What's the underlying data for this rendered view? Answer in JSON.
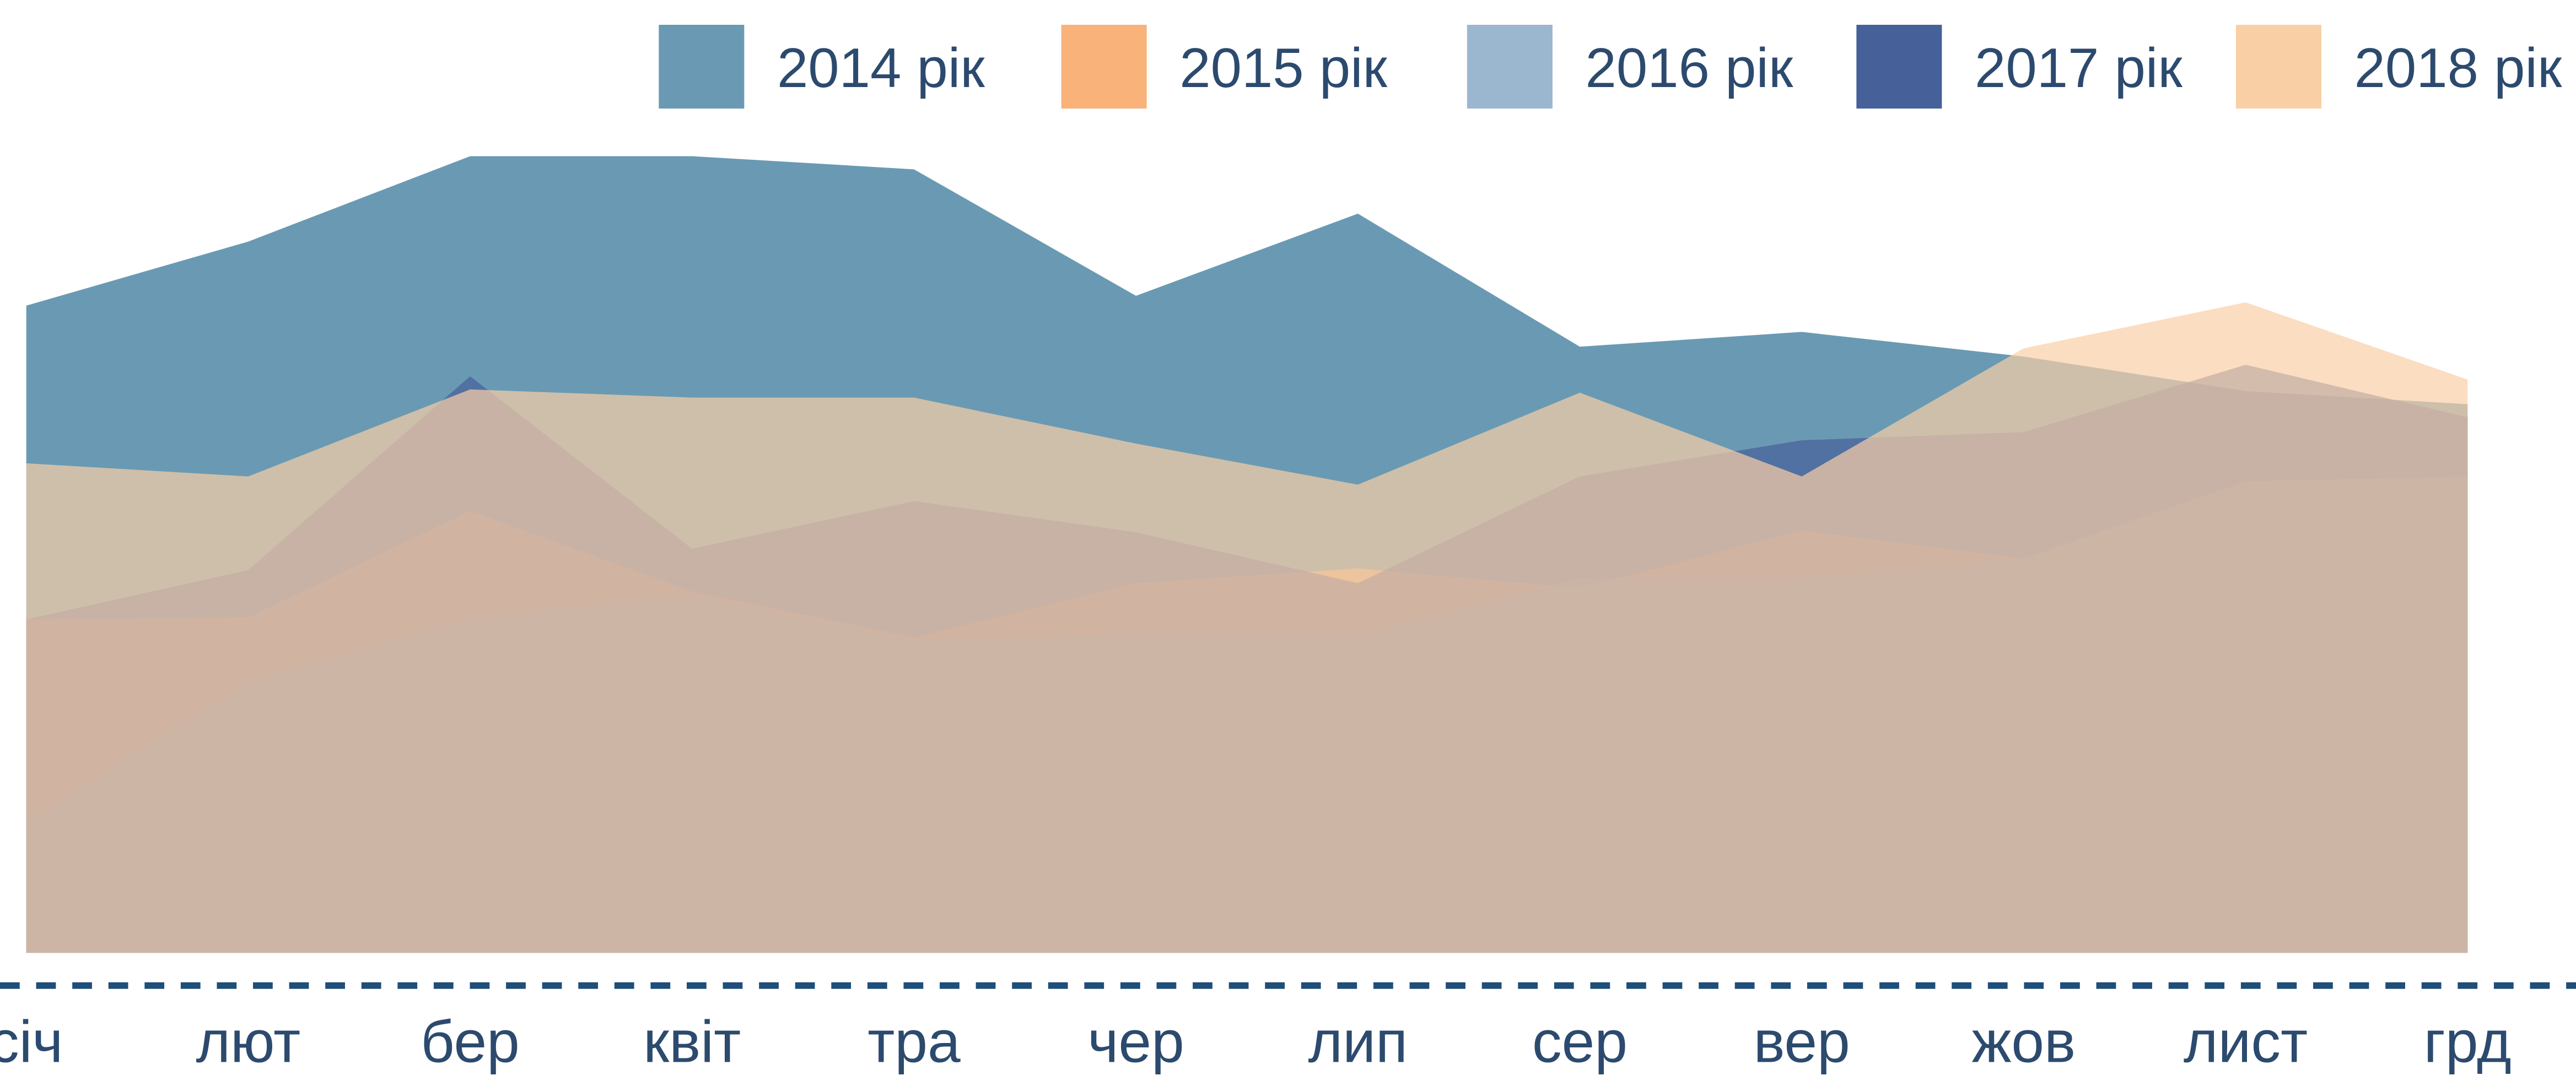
{
  "chart_data": {
    "type": "area",
    "categories": [
      "січ",
      "лют",
      "бер",
      "квіт",
      "тра",
      "чер",
      "лип",
      "сер",
      "вер",
      "жов",
      "лист",
      "грд"
    ],
    "series": [
      {
        "name": "2014 рік",
        "color": "#6a9ab3",
        "values": [
          78.8,
          86.6,
          97,
          97,
          95.4,
          80,
          90,
          73.8,
          75.6,
          72.6,
          68.4,
          66.8
        ]
      },
      {
        "name": "2015 рік",
        "color": "#f8b27a",
        "values": [
          40.6,
          40.8,
          53.8,
          44,
          38.4,
          45,
          46.8,
          44.4,
          51.4,
          48,
          57.4,
          58
        ]
      },
      {
        "name": "2016 рік",
        "color": "#9bb7d0",
        "values": [
          16,
          33,
          40.8,
          43.6,
          38,
          38.8,
          38.8,
          45.6,
          45.6,
          48,
          57.4,
          58
        ]
      },
      {
        "name": "2017 рік",
        "color": "#46609a",
        "values": [
          40.6,
          46.6,
          70.2,
          49.2,
          55,
          51.2,
          45,
          58,
          62.4,
          63.4,
          71.6,
          65.2
        ]
      },
      {
        "name": "2018 рік",
        "color": "#f9cfa6",
        "values": [
          59.6,
          58,
          68.6,
          67.6,
          67.6,
          62,
          57,
          68.2,
          58,
          73.6,
          79.2,
          69.8
        ]
      }
    ],
    "ylim": [
      0,
      100
    ]
  }
}
